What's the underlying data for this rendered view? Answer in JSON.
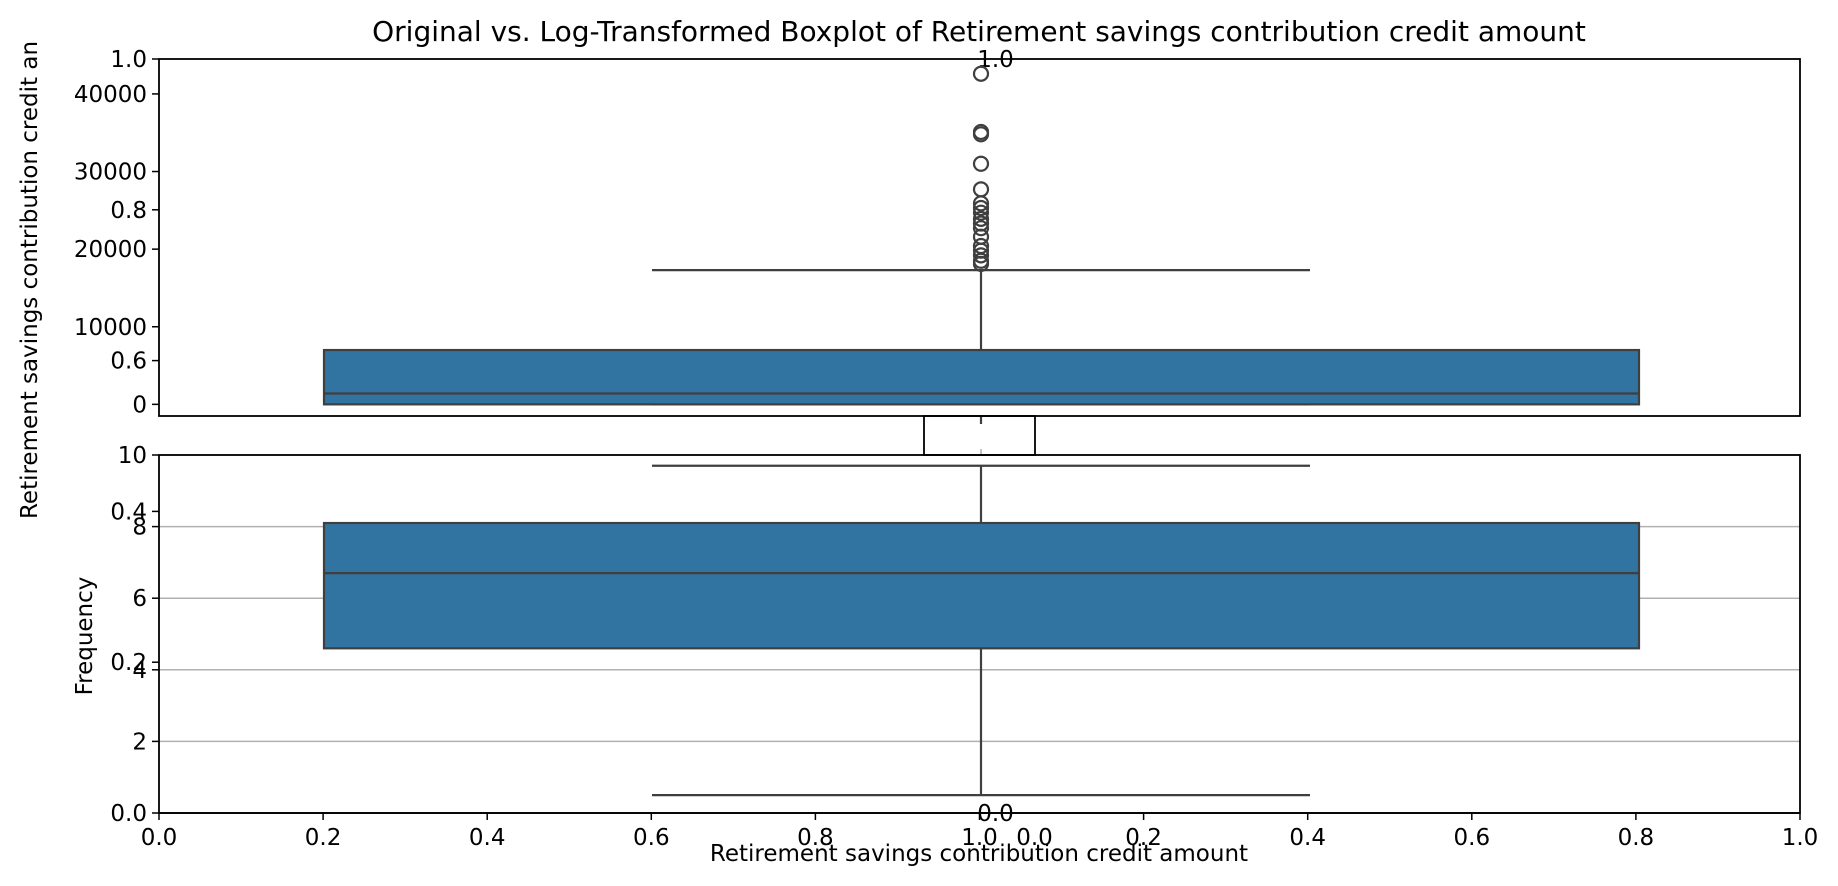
{
  "title": "Original vs. Log-Transformed Boxplot of Retirement savings contribution credit amount",
  "colors": {
    "box_fill": "#3274a1",
    "box_edge": "#3f3f3f",
    "axis": "#000000",
    "grid": "#b0b0b0",
    "background": "#ffffff"
  },
  "chart_data": [
    {
      "type": "box",
      "panel": "original",
      "ylabel": "Retirement savings contribution credit an",
      "ylim": [
        -1500,
        44500
      ],
      "yticks": [
        0,
        10000,
        20000,
        30000,
        40000
      ],
      "ytick_labels": [
        "0",
        "10000",
        "20000",
        "30000",
        "40000"
      ],
      "grid": false,
      "box": {
        "min": 0,
        "q1": 0,
        "median": 1400,
        "q3": 7000,
        "max": 17300
      },
      "outliers": [
        18100,
        18500,
        19200,
        19800,
        20400,
        21600,
        22700,
        23300,
        23900,
        24700,
        25300,
        25900,
        27700,
        31000,
        34800,
        35100,
        42600
      ]
    },
    {
      "type": "box",
      "panel": "log-transformed",
      "ylabel": "Frequency",
      "xlabel": "Retirement savings contribution credit amount",
      "ylim": [
        0,
        10
      ],
      "yticks": [
        2,
        4,
        6,
        8,
        10
      ],
      "ytick_labels": [
        "2",
        "4",
        "6",
        "8",
        "10"
      ],
      "grid": true,
      "box": {
        "min": 0.5,
        "q1": 4.6,
        "median": 6.7,
        "q3": 8.1,
        "max": 9.7
      },
      "outliers": []
    },
    {
      "type": "empty-axes",
      "panel": "background-left",
      "xticks": [
        0.0,
        0.2,
        0.4,
        0.6,
        0.8,
        1.0
      ],
      "xtick_labels": [
        "0.0",
        "0.2",
        "0.4",
        "0.6",
        "0.8",
        "1.0"
      ],
      "yticks": [
        0.0,
        0.2,
        0.4,
        0.6,
        0.8,
        1.0
      ],
      "ytick_labels": [
        "0.0",
        "0.2",
        "0.4",
        "0.6",
        "0.8",
        "1.0"
      ]
    },
    {
      "type": "empty-axes",
      "panel": "background-right",
      "xticks": [
        0.0,
        0.2,
        0.4,
        0.6,
        0.8,
        1.0
      ],
      "xtick_labels": [
        "0.0",
        "0.2",
        "0.4",
        "0.6",
        "0.8",
        "1.0"
      ],
      "yticks": [
        0.0,
        1.0
      ],
      "ytick_labels": [
        "0.0",
        "1.0"
      ]
    }
  ]
}
